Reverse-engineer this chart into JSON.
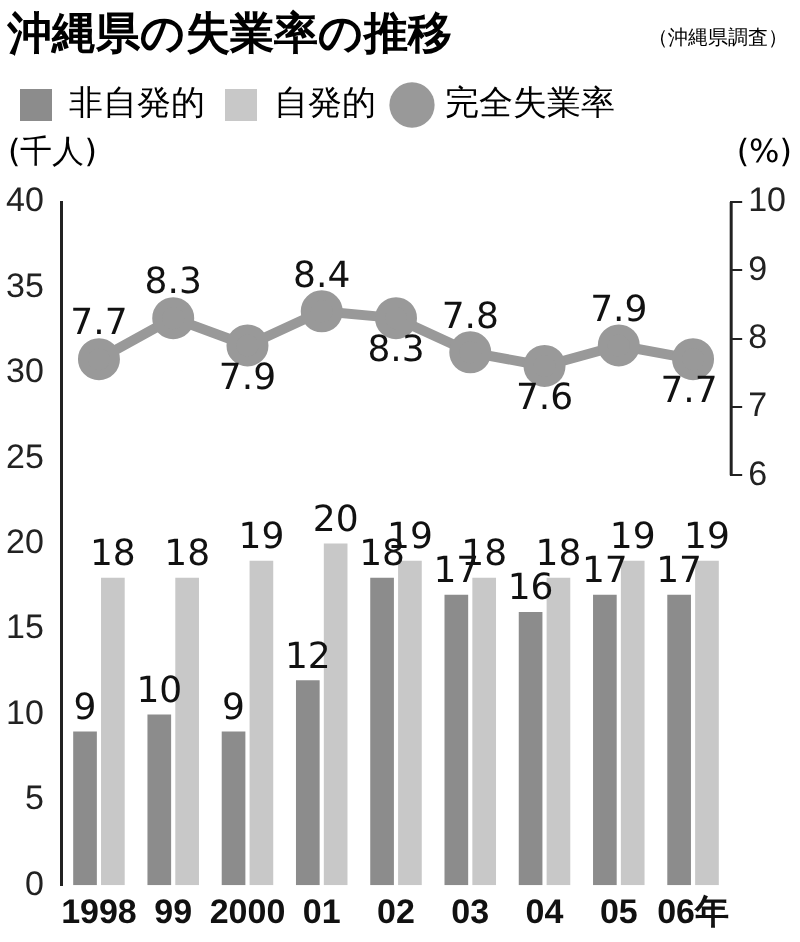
{
  "chart_data": {
    "type": "bar",
    "title": "沖縄県の失業率の推移",
    "annotations": [
      "（沖縄県調査）"
    ],
    "ylabel": "(千人)",
    "y2label": "(%)",
    "categories": [
      "1998",
      "99",
      "2000",
      "01",
      "02",
      "03",
      "04",
      "05",
      "06年"
    ],
    "series": [
      {
        "name": "非自発的",
        "color": "#8c8c8c",
        "values": [
          9,
          10,
          9,
          12,
          18,
          17,
          16,
          17,
          17
        ]
      },
      {
        "name": "自発的",
        "color": "#c8c8c8",
        "values": [
          18,
          18,
          19,
          20,
          19,
          18,
          18,
          19,
          19
        ]
      },
      {
        "name": "完全失業率",
        "type": "line",
        "axis": "y2",
        "color": "#999999",
        "values": [
          7.7,
          8.3,
          7.9,
          8.4,
          8.3,
          7.8,
          7.6,
          7.9,
          7.7
        ]
      }
    ],
    "ylim": [
      0,
      40
    ],
    "yticks": [
      0,
      5,
      10,
      15,
      20,
      25,
      30,
      35,
      40
    ],
    "y2lim": [
      0,
      10
    ],
    "y2ticks": [
      6,
      7,
      8,
      9,
      10
    ],
    "data_labels": true,
    "grid": false,
    "legend": "top",
    "marker": "circle"
  }
}
